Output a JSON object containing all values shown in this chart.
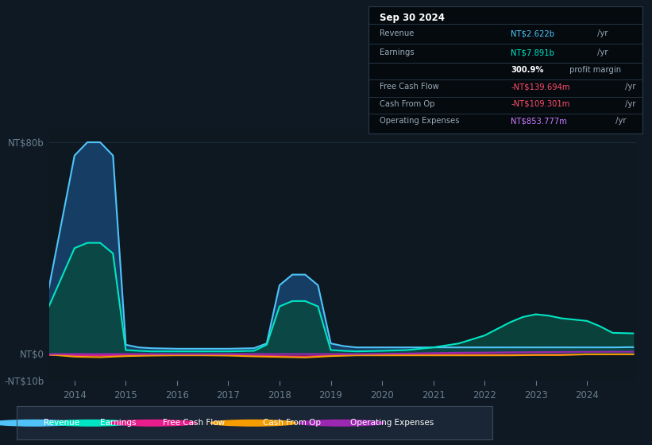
{
  "background_color": "#0f1923",
  "plot_bg_color": "#0d1821",
  "title_box": {
    "date": "Sep 30 2024",
    "rows": [
      {
        "label": "Revenue",
        "value": "NT$2.622b",
        "value_color": "#4fc3f7",
        "suffix": " /yr"
      },
      {
        "label": "Earnings",
        "value": "NT$7.891b",
        "value_color": "#00e5c3",
        "suffix": " /yr"
      },
      {
        "label": "",
        "value": "300.9%",
        "value_color": "#ffffff",
        "suffix": " profit margin",
        "bold_value": true
      },
      {
        "label": "Free Cash Flow",
        "value": "-NT$139.694m",
        "value_color": "#ff4d6a",
        "suffix": " /yr"
      },
      {
        "label": "Cash From Op",
        "value": "-NT$109.301m",
        "value_color": "#ff4d6a",
        "suffix": " /yr"
      },
      {
        "label": "Operating Expenses",
        "value": "NT$853.777m",
        "value_color": "#c97bff",
        "suffix": " /yr"
      }
    ]
  },
  "ylim": [
    -10,
    85
  ],
  "yticks": [
    -10,
    0,
    80
  ],
  "ytick_labels": [
    "-NT$10b",
    "NT$0",
    "NT$80b"
  ],
  "xticks": [
    2014,
    2015,
    2016,
    2017,
    2018,
    2019,
    2020,
    2021,
    2022,
    2023,
    2024
  ],
  "xlim": [
    2013.5,
    2024.95
  ],
  "series": {
    "revenue": {
      "color": "#4fc3f7",
      "fill_color": "#1a4a7a",
      "label": "Revenue"
    },
    "earnings": {
      "color": "#00e5c3",
      "fill_color": "#0a4a40",
      "label": "Earnings"
    },
    "fcf": {
      "color": "#e91e8c",
      "label": "Free Cash Flow"
    },
    "cashfromop": {
      "color": "#f59d00",
      "label": "Cash From Op"
    },
    "opex": {
      "color": "#9c27b0",
      "label": "Operating Expenses"
    }
  },
  "legend_bg": "#1a2535",
  "legend_border": "#3a4a5a",
  "grid_color": "#1e2d3d",
  "axis_label_color": "#6a7f90",
  "divider_color": "#2a3a4a"
}
